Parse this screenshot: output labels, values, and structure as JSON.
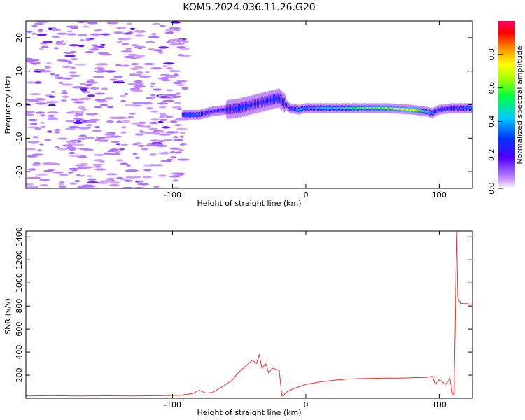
{
  "title": "KOM5.2024.036.11.26.G20",
  "chart_data": [
    {
      "type": "heatmap",
      "xlabel": "Height of straight line (km)",
      "ylabel": "Frequency (Hz)",
      "xlim": [
        -210,
        125
      ],
      "ylim": [
        -25,
        25
      ],
      "xticks": [
        -100,
        0,
        100
      ],
      "yticks": [
        -20,
        -10,
        0,
        10,
        20
      ],
      "colorbar": {
        "label": "Normalized spectral amplitude",
        "range": [
          0,
          1
        ],
        "ticks": [
          0.0,
          0.2,
          0.4,
          0.6,
          0.8
        ]
      },
      "ridge": {
        "x": [
          -92,
          -80,
          -70,
          -60,
          -50,
          -40,
          -30,
          -20,
          -12,
          -5,
          0,
          20,
          40,
          60,
          80,
          90,
          95,
          100,
          110,
          125
        ],
        "frequency": [
          -3,
          -3,
          -2,
          -1.5,
          -1,
          0,
          1,
          2,
          -1,
          -1.5,
          -1,
          -1,
          -1,
          -1,
          -1.5,
          -2,
          -2.5,
          -1.5,
          -1,
          -1
        ],
        "amplitude": [
          0.3,
          0.35,
          0.2,
          0.25,
          0.3,
          0.25,
          0.25,
          0.3,
          0.25,
          0.4,
          0.35,
          0.45,
          0.6,
          0.65,
          0.75,
          0.5,
          0.35,
          0.25,
          0.3,
          0.35
        ]
      },
      "noise_region_x": [
        -210,
        -90
      ]
    },
    {
      "type": "line",
      "xlabel": "Height of straight line (km)",
      "ylabel": "SNR (v/v)",
      "xlim": [
        -210,
        125
      ],
      "ylim": [
        0,
        1450
      ],
      "xticks": [
        -100,
        0,
        100
      ],
      "yticks": [
        200,
        400,
        600,
        800,
        1000,
        1200,
        1400
      ],
      "color": "#e8312e",
      "series": [
        {
          "x": [
            -210,
            -190,
            -170,
            -150,
            -130,
            -110,
            -95,
            -85,
            -80,
            -75,
            -70,
            -60,
            -55,
            -50,
            -45,
            -40,
            -37,
            -35,
            -33,
            -30,
            -28,
            -25,
            -22,
            -20,
            -18,
            -17,
            -15,
            -10,
            -5,
            0,
            10,
            20,
            30,
            40,
            50,
            60,
            70,
            80,
            90,
            95,
            97,
            100,
            105,
            108,
            110,
            111,
            112,
            113,
            114,
            116,
            120,
            125
          ],
          "y": [
            20,
            22,
            20,
            21,
            20,
            22,
            25,
            40,
            70,
            45,
            50,
            120,
            160,
            230,
            280,
            330,
            300,
            380,
            260,
            300,
            220,
            260,
            250,
            240,
            20,
            20,
            50,
            80,
            100,
            120,
            140,
            155,
            165,
            170,
            172,
            175,
            175,
            178,
            180,
            190,
            120,
            160,
            120,
            170,
            40,
            30,
            600,
            1450,
            870,
            820,
            820,
            815
          ]
        }
      ]
    }
  ]
}
